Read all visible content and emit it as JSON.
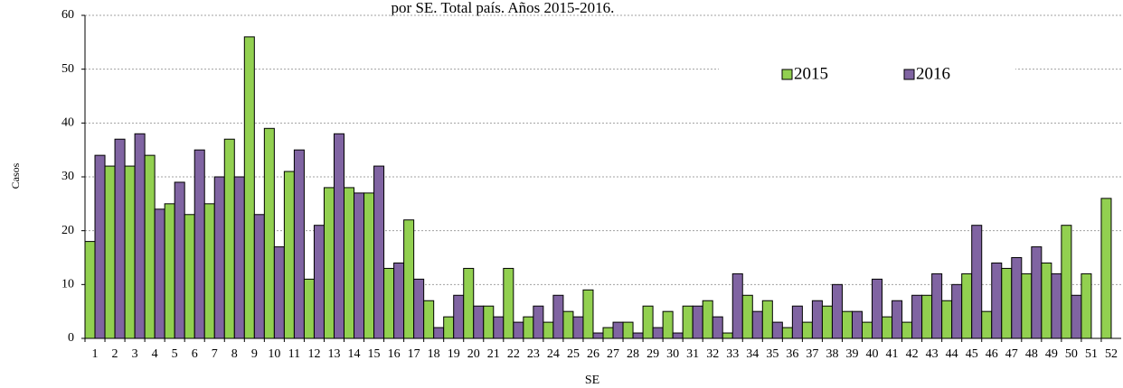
{
  "chart_data": {
    "type": "bar",
    "title": "por SE. Total país. Años 2015-2016.",
    "x_label": "SE",
    "y_label": "Casos",
    "categories": [
      "1",
      "2",
      "3",
      "4",
      "5",
      "6",
      "7",
      "8",
      "9",
      "10",
      "11",
      "12",
      "13",
      "14",
      "15",
      "16",
      "17",
      "18",
      "19",
      "20",
      "21",
      "22",
      "23",
      "24",
      "25",
      "26",
      "27",
      "28",
      "29",
      "30",
      "31",
      "32",
      "33",
      "34",
      "35",
      "36",
      "37",
      "38",
      "39",
      "40",
      "41",
      "42",
      "43",
      "44",
      "45",
      "46",
      "47",
      "48",
      "49",
      "50",
      "51",
      "52"
    ],
    "series": [
      {
        "name": "2015",
        "color": "#92d050",
        "values": [
          18,
          32,
          32,
          34,
          25,
          23,
          25,
          37,
          56,
          39,
          31,
          11,
          28,
          28,
          27,
          13,
          22,
          7,
          4,
          13,
          6,
          13,
          4,
          3,
          5,
          9,
          2,
          3,
          6,
          5,
          6,
          7,
          1,
          8,
          7,
          2,
          3,
          6,
          5,
          3,
          4,
          3,
          8,
          7,
          12,
          5,
          13,
          12,
          14,
          21,
          12,
          26
        ]
      },
      {
        "name": "2016",
        "color": "#8064a2",
        "values": [
          34,
          37,
          38,
          24,
          29,
          35,
          30,
          30,
          23,
          17,
          35,
          21,
          38,
          27,
          32,
          14,
          11,
          2,
          8,
          6,
          4,
          3,
          6,
          8,
          4,
          1,
          3,
          1,
          2,
          1,
          6,
          4,
          12,
          5,
          3,
          6,
          7,
          10,
          5,
          11,
          7,
          8,
          12,
          10,
          21,
          14,
          15,
          17,
          12,
          8,
          null,
          null
        ]
      }
    ],
    "ylim": [
      0,
      60
    ],
    "yticks": [
      0,
      10,
      20,
      30,
      40,
      50,
      60
    ],
    "grid": true,
    "legend": "top-right"
  }
}
